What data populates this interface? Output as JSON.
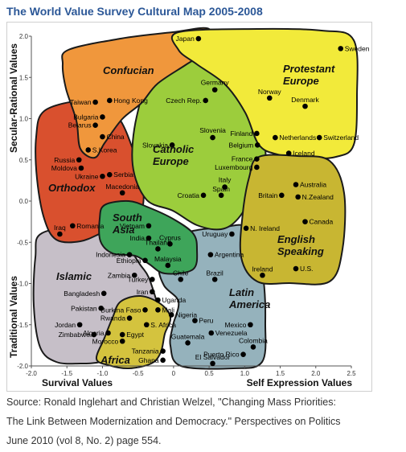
{
  "header": {
    "title": "The World Value Survey Cultural Map 2005-2008"
  },
  "caption": {
    "line1": "Source: Ronald Inglehart and Christian Welzel, \"Changing Mass Priorities:",
    "line2": "The Link Between Modernization and Democracy.\" Perspectives on Politics",
    "line3": "June 2010 (vol 8, No. 2) page 554."
  },
  "chart_data": {
    "type": "scatter",
    "title": "The World Value Survey Cultural Map 2005-2008",
    "xlabel_left": "Survival Values",
    "xlabel_right": "Self Expression Values",
    "ylabel_top": "Secular-Rational Values",
    "ylabel_bottom": "Traditional Values",
    "xlim": [
      -2.0,
      2.5
    ],
    "ylim": [
      -2.0,
      2.0
    ],
    "xticks": [
      "-2.0",
      "-1.5",
      "-1.0",
      "-0.5",
      "0",
      "0.5",
      "1.0",
      "1.5",
      "2.0",
      "2.5"
    ],
    "yticks": [
      "2.0",
      "1.5",
      "1.0",
      "0.5",
      "0.0",
      "-0.5",
      "-1.0",
      "-1.5",
      "-2.0"
    ],
    "grid": false,
    "regions": [
      {
        "name": "Protestant Europe",
        "color": "#f2ea3a"
      },
      {
        "name": "Confucian",
        "color": "#f0973c"
      },
      {
        "name": "Catholic Europe",
        "color": "#9ccd3c"
      },
      {
        "name": "Orthodox",
        "color": "#d9502e"
      },
      {
        "name": "English Speaking",
        "color": "#c8b632"
      },
      {
        "name": "South Asia",
        "color": "#3ea55a"
      },
      {
        "name": "Islamic",
        "color": "#c6bfc8"
      },
      {
        "name": "Latin America",
        "color": "#95b2bc"
      },
      {
        "name": "Africa",
        "color": "#d4c33e"
      }
    ],
    "points": [
      {
        "name": "Japan",
        "x": 0.35,
        "y": 1.97
      },
      {
        "name": "Sweden",
        "x": 2.35,
        "y": 1.85
      },
      {
        "name": "Germany",
        "x": 0.58,
        "y": 1.35
      },
      {
        "name": "Norway",
        "x": 1.35,
        "y": 1.25
      },
      {
        "name": "Denmark",
        "x": 1.85,
        "y": 1.15
      },
      {
        "name": "Czech Rep.",
        "x": 0.45,
        "y": 1.22
      },
      {
        "name": "Finland",
        "x": 1.17,
        "y": 0.82
      },
      {
        "name": "Netherlands",
        "x": 1.43,
        "y": 0.77
      },
      {
        "name": "Switzerland",
        "x": 2.05,
        "y": 0.77
      },
      {
        "name": "Belgium",
        "x": 1.18,
        "y": 0.68
      },
      {
        "name": "Iceland",
        "x": 1.62,
        "y": 0.58
      },
      {
        "name": "Slovenia",
        "x": 0.55,
        "y": 0.77
      },
      {
        "name": "Slovakia",
        "x": -0.02,
        "y": 0.68
      },
      {
        "name": "France",
        "x": 1.17,
        "y": 0.51
      },
      {
        "name": "Luxembourg",
        "x": 1.17,
        "y": 0.41
      },
      {
        "name": "Italy",
        "x": 0.72,
        "y": 0.17
      },
      {
        "name": "Croatia",
        "x": 0.42,
        "y": 0.07
      },
      {
        "name": "Spain",
        "x": 0.67,
        "y": 0.07
      },
      {
        "name": "Taiwan",
        "x": -1.1,
        "y": 1.2
      },
      {
        "name": "Hong Kong",
        "x": -0.9,
        "y": 1.22
      },
      {
        "name": "Bulgaria",
        "x": -1.0,
        "y": 1.02
      },
      {
        "name": "Belarus",
        "x": -1.1,
        "y": 0.92
      },
      {
        "name": "China",
        "x": -1.0,
        "y": 0.78
      },
      {
        "name": "S.Korea",
        "x": -1.2,
        "y": 0.62
      },
      {
        "name": "Russia",
        "x": -1.33,
        "y": 0.5
      },
      {
        "name": "Moldova",
        "x": -1.3,
        "y": 0.4
      },
      {
        "name": "Ukraine",
        "x": -1.0,
        "y": 0.3
      },
      {
        "name": "Serbia",
        "x": -0.9,
        "y": 0.32
      },
      {
        "name": "Macedonia",
        "x": -0.72,
        "y": 0.1
      },
      {
        "name": "Romania",
        "x": -1.42,
        "y": -0.3
      },
      {
        "name": "Iraq",
        "x": -1.6,
        "y": -0.4
      },
      {
        "name": "Vietnam",
        "x": -0.35,
        "y": -0.3
      },
      {
        "name": "India",
        "x": -0.35,
        "y": -0.45
      },
      {
        "name": "Cyprus",
        "x": -0.05,
        "y": -0.52
      },
      {
        "name": "Thailand",
        "x": -0.22,
        "y": -0.58
      },
      {
        "name": "Indonesia",
        "x": -0.62,
        "y": -0.65
      },
      {
        "name": "Ethiopia",
        "x": -0.4,
        "y": -0.72
      },
      {
        "name": "Malaysia",
        "x": -0.08,
        "y": -0.78
      },
      {
        "name": "Uruguay",
        "x": 0.82,
        "y": -0.4
      },
      {
        "name": "Argentina",
        "x": 0.52,
        "y": -0.65
      },
      {
        "name": "Zambia",
        "x": -0.55,
        "y": -0.9
      },
      {
        "name": "Turkey",
        "x": -0.3,
        "y": -0.95
      },
      {
        "name": "Chile",
        "x": 0.1,
        "y": -0.95
      },
      {
        "name": "Brazil",
        "x": 0.58,
        "y": -0.95
      },
      {
        "name": "Bangladesh",
        "x": -0.98,
        "y": -1.12
      },
      {
        "name": "Iran",
        "x": -0.3,
        "y": -1.1
      },
      {
        "name": "Uganda",
        "x": -0.22,
        "y": -1.2
      },
      {
        "name": "Pakistan",
        "x": -1.02,
        "y": -1.3
      },
      {
        "name": "Burkina Faso",
        "x": -0.4,
        "y": -1.32
      },
      {
        "name": "Mali",
        "x": -0.22,
        "y": -1.32
      },
      {
        "name": "Nigeria",
        "x": -0.03,
        "y": -1.38
      },
      {
        "name": "Rwanda",
        "x": -0.62,
        "y": -1.42
      },
      {
        "name": "S. Africa",
        "x": -0.38,
        "y": -1.5
      },
      {
        "name": "Peru",
        "x": 0.3,
        "y": -1.45
      },
      {
        "name": "Mexico",
        "x": 1.08,
        "y": -1.5
      },
      {
        "name": "Jordan",
        "x": -1.32,
        "y": -1.5
      },
      {
        "name": "Zimbabwe",
        "x": -1.12,
        "y": -1.62
      },
      {
        "name": "Algeria",
        "x": -0.92,
        "y": -1.6
      },
      {
        "name": "Venezuela",
        "x": 0.53,
        "y": -1.6
      },
      {
        "name": "Morocco",
        "x": -0.72,
        "y": -1.7
      },
      {
        "name": "Egypt",
        "x": -0.72,
        "y": -1.62
      },
      {
        "name": "Guatemala",
        "x": 0.2,
        "y": -1.72
      },
      {
        "name": "Colombia",
        "x": 1.12,
        "y": -1.77
      },
      {
        "name": "Tanzania",
        "x": -0.15,
        "y": -1.82
      },
      {
        "name": "Puerto Rico",
        "x": 0.98,
        "y": -1.86
      },
      {
        "name": "Ghana",
        "x": -0.15,
        "y": -1.93
      },
      {
        "name": "El Salvador",
        "x": 0.55,
        "y": -1.97
      },
      {
        "name": "Australia",
        "x": 1.72,
        "y": 0.2
      },
      {
        "name": "Britain",
        "x": 1.52,
        "y": 0.07
      },
      {
        "name": "N.Zealand",
        "x": 1.75,
        "y": 0.05
      },
      {
        "name": "Canada",
        "x": 1.85,
        "y": -0.25
      },
      {
        "name": "N. Ireland",
        "x": 1.02,
        "y": -0.33
      },
      {
        "name": "Ireland",
        "x": 1.25,
        "y": -0.9
      },
      {
        "name": "U.S.",
        "x": 1.72,
        "y": -0.82
      }
    ]
  }
}
